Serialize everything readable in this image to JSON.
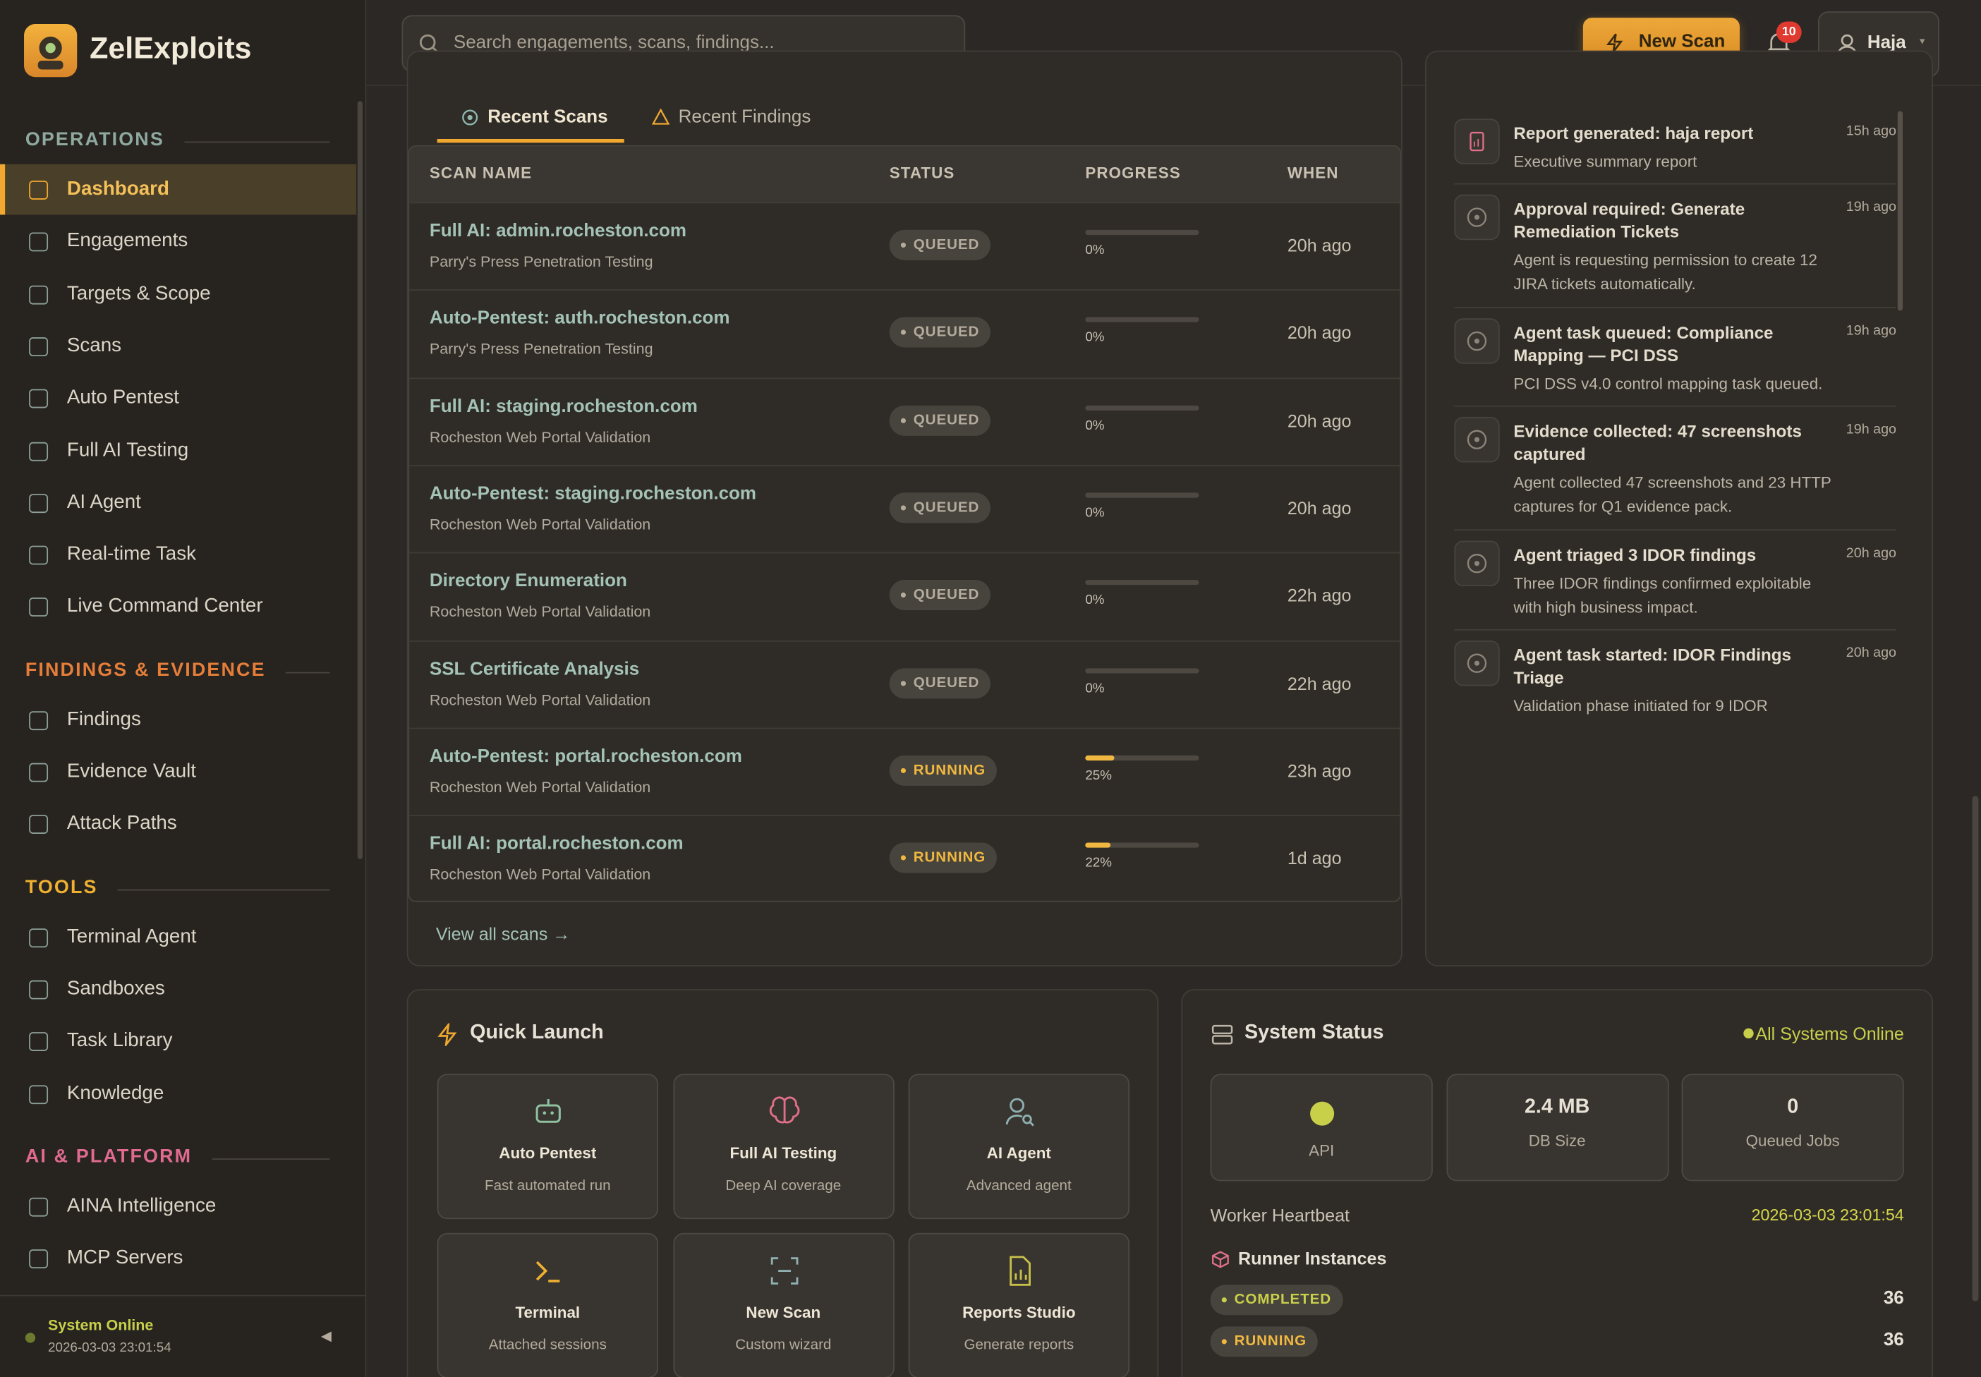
{
  "app": {
    "brand": "ZelExploits",
    "search_placeholder": "Search engagements, scans, findings...",
    "new_scan": "New Scan",
    "notification_count": 10,
    "user": "Haja"
  },
  "sidebar": {
    "sections": [
      {
        "title": "OPERATIONS",
        "items": [
          "Dashboard",
          "Engagements",
          "Targets & Scope",
          "Scans",
          "Auto Pentest",
          "Full AI Testing",
          "AI Agent",
          "Real-time Task",
          "Live Command Center"
        ]
      },
      {
        "title": "FINDINGS & EVIDENCE",
        "items": [
          "Findings",
          "Evidence Vault",
          "Attack Paths"
        ]
      },
      {
        "title": "TOOLS",
        "items": [
          "Terminal Agent",
          "Sandboxes",
          "Task Library",
          "Knowledge"
        ]
      },
      {
        "title": "AI & PLATFORM",
        "items": [
          "AINA Intelligence",
          "MCP Servers"
        ]
      }
    ],
    "status": "System Online",
    "timestamp": "2026-03-03 23:01:54"
  },
  "recent_scans": {
    "tabs": [
      "Recent Scans",
      "Recent Findings"
    ],
    "columns": [
      "SCAN NAME",
      "STATUS",
      "PROGRESS",
      "WHEN"
    ],
    "rows": [
      {
        "name": "Full AI: admin.rocheston.com",
        "engagement": "Parry's Press Penetration Testing",
        "status": "QUEUED",
        "badge_color": "#b3ab9c",
        "progress": 0,
        "progress_label": "0%",
        "when": "20h ago"
      },
      {
        "name": "Auto-Pentest: auth.rocheston.com",
        "engagement": "Parry's Press Penetration Testing",
        "status": "QUEUED",
        "badge_color": "#b3ab9c",
        "progress": 0,
        "progress_label": "0%",
        "when": "20h ago"
      },
      {
        "name": "Full AI: staging.rocheston.com",
        "engagement": "Rocheston Web Portal Validation",
        "status": "QUEUED",
        "badge_color": "#b3ab9c",
        "progress": 0,
        "progress_label": "0%",
        "when": "20h ago"
      },
      {
        "name": "Auto-Pentest: staging.rocheston.com",
        "engagement": "Rocheston Web Portal Validation",
        "status": "QUEUED",
        "badge_color": "#b3ab9c",
        "progress": 0,
        "progress_label": "0%",
        "when": "20h ago"
      },
      {
        "name": "Directory Enumeration",
        "engagement": "Rocheston Web Portal Validation",
        "status": "QUEUED",
        "badge_color": "#b3ab9c",
        "progress": 0,
        "progress_label": "0%",
        "when": "22h ago"
      },
      {
        "name": "SSL Certificate Analysis",
        "engagement": "Rocheston Web Portal Validation",
        "status": "QUEUED",
        "badge_color": "#b3ab9c",
        "progress": 0,
        "progress_label": "0%",
        "when": "22h ago"
      },
      {
        "name": "Auto-Pentest: portal.rocheston.com",
        "engagement": "Rocheston Web Portal Validation",
        "status": "RUNNING",
        "badge_color": "#f0b840",
        "progress": 25,
        "progress_label": "25%",
        "when": "23h ago"
      },
      {
        "name": "Full AI: portal.rocheston.com",
        "engagement": "Rocheston Web Portal Validation",
        "status": "RUNNING",
        "badge_color": "#f0b840",
        "progress": 22,
        "progress_label": "22%",
        "when": "1d ago"
      }
    ],
    "view_all": "View all scans →"
  },
  "activity": {
    "items": [
      {
        "title": "Report generated: haja report",
        "description": "Executive summary report",
        "time": "15h ago"
      },
      {
        "title": "Approval required: Generate Remediation Tickets",
        "description": "Agent is requesting permission to create 12 JIRA tickets automatically.",
        "time": "19h ago"
      },
      {
        "title": "Agent task queued: Compliance Mapping — PCI DSS",
        "description": "PCI DSS v4.0 control mapping task queued.",
        "time": "19h ago"
      },
      {
        "title": "Evidence collected: 47 screenshots captured",
        "description": "Agent collected 47 screenshots and 23 HTTP captures for Q1 evidence pack.",
        "time": "19h ago"
      },
      {
        "title": "Agent triaged 3 IDOR findings",
        "description": "Three IDOR findings confirmed exploitable with high business impact.",
        "time": "20h ago"
      },
      {
        "title": "Agent task started: IDOR Findings Triage",
        "description": "Validation phase initiated for 9 IDOR",
        "time": "20h ago"
      }
    ]
  },
  "quick_launch": {
    "title": "Quick Launch",
    "cards": [
      {
        "title": "Auto Pentest",
        "subtitle": "Fast automated run"
      },
      {
        "title": "Full AI Testing",
        "subtitle": "Deep AI coverage"
      },
      {
        "title": "AI Agent",
        "subtitle": "Advanced agent"
      },
      {
        "title": "Terminal",
        "subtitle": "Attached sessions"
      },
      {
        "title": "New Scan",
        "subtitle": "Custom wizard"
      },
      {
        "title": "Reports Studio",
        "subtitle": "Generate reports"
      }
    ]
  },
  "system_status": {
    "title": "System Status",
    "overall": "All Systems Online",
    "stats": [
      {
        "label": "API"
      },
      {
        "value": "2.4 MB",
        "label": "DB Size"
      },
      {
        "value": 0,
        "label": "Queued Jobs"
      }
    ],
    "heartbeat_label": "Worker Heartbeat",
    "heartbeat": "2026-03-03 23:01:54",
    "runners_title": "Runner Instances",
    "runners": [
      {
        "status": "COMPLETED",
        "color": "#c8d04a",
        "count": 36
      },
      {
        "status": "RUNNING",
        "color": "#f0b840",
        "count": 36
      }
    ]
  }
}
